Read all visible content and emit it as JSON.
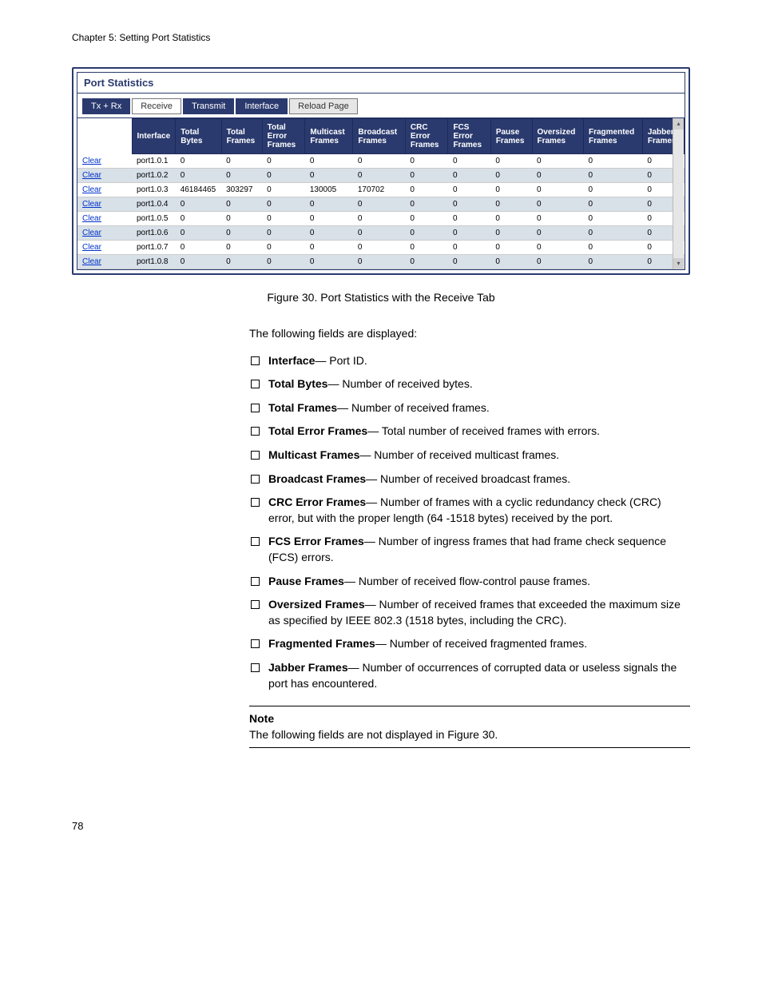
{
  "header": {
    "chapter": "Chapter 5: Setting Port Statistics"
  },
  "panel": {
    "title": "Port Statistics",
    "tabs": {
      "txrx": "Tx + Rx",
      "receive": "Receive",
      "transmit": "Transmit",
      "interface": "Interface",
      "reload": "Reload Page"
    },
    "columns": {
      "clear": "Clear",
      "interface": "Interface",
      "total_bytes": "Total Bytes",
      "total_frames": "Total Frames",
      "total_error_frames": "Total Error Frames",
      "multicast_frames": "Multicast Frames",
      "broadcast_frames": "Broadcast Frames",
      "crc_error_frames": "CRC Error Frames",
      "fcs_error_frames": "FCS Error Frames",
      "pause_frames": "Pause Frames",
      "oversized_frames": "Oversized Frames",
      "fragmented_frames": "Fragmented Frames",
      "jabber_frames": "Jabber Frames"
    },
    "rows": [
      {
        "iface": "port1.0.1",
        "tb": "0",
        "tf": "0",
        "tef": "0",
        "mf": "0",
        "bf": "0",
        "crc": "0",
        "fcs": "0",
        "pf": "0",
        "of": "0",
        "ff": "0",
        "jf": "0"
      },
      {
        "iface": "port1.0.2",
        "tb": "0",
        "tf": "0",
        "tef": "0",
        "mf": "0",
        "bf": "0",
        "crc": "0",
        "fcs": "0",
        "pf": "0",
        "of": "0",
        "ff": "0",
        "jf": "0"
      },
      {
        "iface": "port1.0.3",
        "tb": "46184465",
        "tf": "303297",
        "tef": "0",
        "mf": "130005",
        "bf": "170702",
        "crc": "0",
        "fcs": "0",
        "pf": "0",
        "of": "0",
        "ff": "0",
        "jf": "0"
      },
      {
        "iface": "port1.0.4",
        "tb": "0",
        "tf": "0",
        "tef": "0",
        "mf": "0",
        "bf": "0",
        "crc": "0",
        "fcs": "0",
        "pf": "0",
        "of": "0",
        "ff": "0",
        "jf": "0"
      },
      {
        "iface": "port1.0.5",
        "tb": "0",
        "tf": "0",
        "tef": "0",
        "mf": "0",
        "bf": "0",
        "crc": "0",
        "fcs": "0",
        "pf": "0",
        "of": "0",
        "ff": "0",
        "jf": "0"
      },
      {
        "iface": "port1.0.6",
        "tb": "0",
        "tf": "0",
        "tef": "0",
        "mf": "0",
        "bf": "0",
        "crc": "0",
        "fcs": "0",
        "pf": "0",
        "of": "0",
        "ff": "0",
        "jf": "0"
      },
      {
        "iface": "port1.0.7",
        "tb": "0",
        "tf": "0",
        "tef": "0",
        "mf": "0",
        "bf": "0",
        "crc": "0",
        "fcs": "0",
        "pf": "0",
        "of": "0",
        "ff": "0",
        "jf": "0"
      },
      {
        "iface": "port1.0.8",
        "tb": "0",
        "tf": "0",
        "tef": "0",
        "mf": "0",
        "bf": "0",
        "crc": "0",
        "fcs": "0",
        "pf": "0",
        "of": "0",
        "ff": "0",
        "jf": "0"
      }
    ]
  },
  "caption": "Figure 30. Port Statistics with the Receive Tab",
  "intro": "The following fields are displayed:",
  "fields": [
    {
      "term": "Interface",
      "desc": "— Port ID."
    },
    {
      "term": "Total Bytes",
      "desc": "— Number of received bytes."
    },
    {
      "term": "Total Frames",
      "desc": "— Number of received frames."
    },
    {
      "term": "Total Error Frames",
      "desc": "— Total number of received frames with errors."
    },
    {
      "term": "Multicast Frames",
      "desc": "— Number of received multicast frames."
    },
    {
      "term": "Broadcast Frames",
      "desc": "— Number of received broadcast frames."
    },
    {
      "term": "CRC Error Frames",
      "desc": "— Number of frames with a cyclic redundancy check (CRC) error, but with the proper length (64 -1518 bytes) received by the port."
    },
    {
      "term": "FCS Error Frames",
      "desc": "— Number of ingress frames that had frame check sequence (FCS) errors."
    },
    {
      "term": "Pause Frames",
      "desc": "— Number of received flow-control pause frames."
    },
    {
      "term": "Oversized Frames",
      "desc": "— Number of received frames that exceeded the maximum size as specified by IEEE 802.3 (1518 bytes, including the CRC)."
    },
    {
      "term": "Fragmented Frames",
      "desc": "— Number of received fragmented frames."
    },
    {
      "term": "Jabber Frames",
      "desc": "— Number of occurrences of corrupted data or useless signals the port has encountered."
    }
  ],
  "note": {
    "title": "Note",
    "body": "The following fields are not displayed in Figure 30."
  },
  "page_number": "78"
}
